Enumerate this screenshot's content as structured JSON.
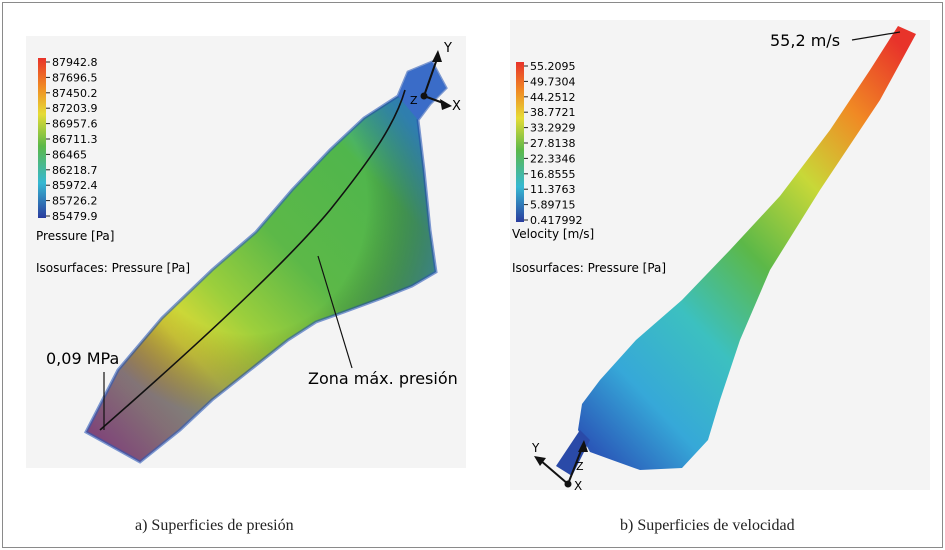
{
  "panel_a": {
    "legend_ticks": [
      "87942.8",
      "87696.5",
      "87450.2",
      "87203.9",
      "86957.6",
      "86711.3",
      "86465",
      "86218.7",
      "85972.4",
      "85726.2",
      "85479.9"
    ],
    "legend_title": "Pressure [Pa]",
    "isosurface_label": "Isosurfaces: Pressure [Pa]",
    "annotation_min": "0,09 MPa",
    "annotation_zone": "Zona máx. presión",
    "axes": {
      "y": "Y",
      "x": "X",
      "z": "Z"
    },
    "caption": "a) Superficies de presión"
  },
  "panel_b": {
    "legend_ticks": [
      "55.2095",
      "49.7304",
      "44.2512",
      "38.7721",
      "33.2929",
      "27.8138",
      "22.3346",
      "16.8555",
      "11.3763",
      "5.89715",
      "0.417992"
    ],
    "legend_title": "Velocity [m/s]",
    "isosurface_label": "Isosurfaces: Pressure [Pa]",
    "annotation_max": "55,2 m/s",
    "axes": {
      "y": "Y",
      "x": "X",
      "z": "Z"
    },
    "caption": "b) Superficies de velocidad"
  },
  "colors": {
    "red": "#e8332a",
    "orange": "#f08a24",
    "yellow": "#e6dc36",
    "green": "#5cb848",
    "cyan": "#36b8d2",
    "blue": "#2a58b8",
    "dark_blue": "#2a3c9e"
  }
}
